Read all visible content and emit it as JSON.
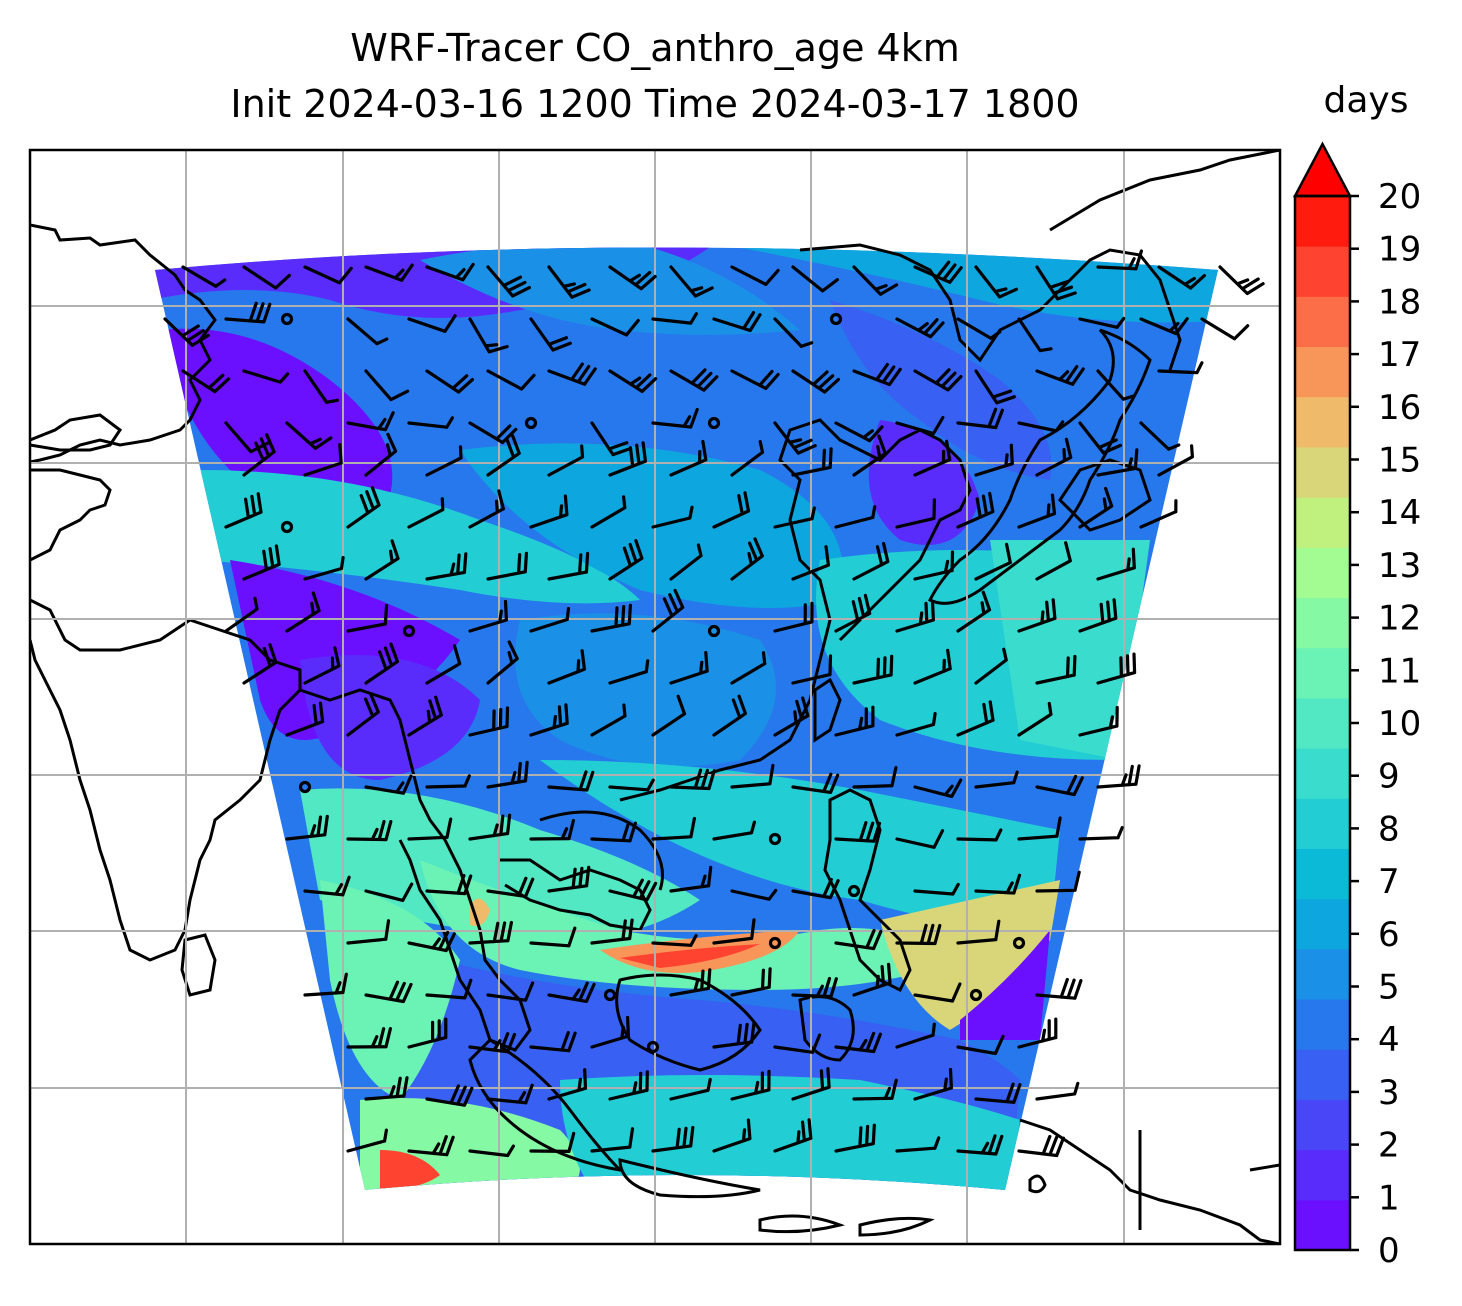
{
  "title_line1": "WRF-Tracer CO_anthro_age 4km",
  "title_line2": "Init 2024-03-16 1200 Time 2024-03-17 1800",
  "colorbar": {
    "units": "days",
    "ticks": [
      "0",
      "1",
      "2",
      "3",
      "4",
      "5",
      "6",
      "7",
      "8",
      "9",
      "10",
      "11",
      "12",
      "13",
      "14",
      "15",
      "16",
      "17",
      "18",
      "19",
      "20"
    ],
    "extend": "max",
    "colormap": "rainbow",
    "colors": [
      "#6a10ff",
      "#5a2cfb",
      "#4946f7",
      "#3860f2",
      "#2778ec",
      "#1a90e6",
      "#0ea6df",
      "#0bbad6",
      "#22cdd4",
      "#39dccd",
      "#52e8c3",
      "#6bf2b5",
      "#86f9a4",
      "#a2fc92",
      "#c0f07e",
      "#d8d678",
      "#efbb6a",
      "#f8965a",
      "#fb6e47",
      "#fe4430",
      "#ff1b0e"
    ],
    "over_color": "#ff0000"
  },
  "map": {
    "gridlines": true,
    "coastlines": true,
    "wind_barbs": true,
    "field": "CO_anthro_age"
  }
}
